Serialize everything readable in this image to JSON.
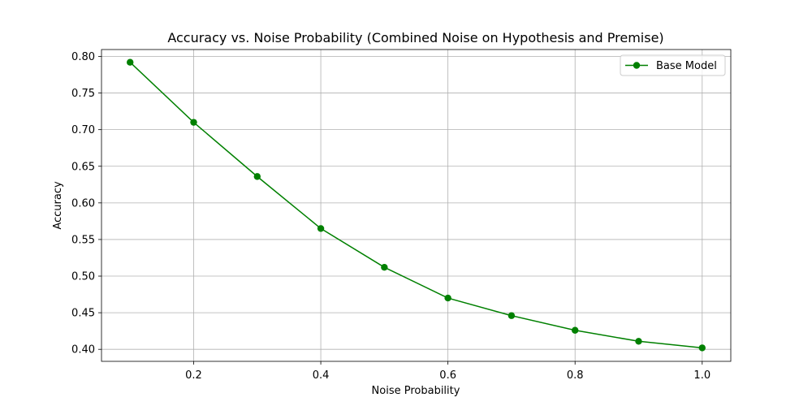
{
  "chart_data": {
    "type": "line",
    "title": "Accuracy vs. Noise Probability (Combined Noise on Hypothesis and Premise)",
    "xlabel": "Noise Probability",
    "ylabel": "Accuracy",
    "xlim": [
      0.055,
      1.045
    ],
    "ylim": [
      0.3836,
      0.8094
    ],
    "xticks": [
      0.2,
      0.4,
      0.6,
      0.8,
      1.0
    ],
    "xtick_labels": [
      "0.2",
      "0.4",
      "0.6",
      "0.8",
      "1.0"
    ],
    "yticks": [
      0.4,
      0.45,
      0.5,
      0.55,
      0.6,
      0.65,
      0.7,
      0.75,
      0.8
    ],
    "ytick_labels": [
      "0.40",
      "0.45",
      "0.50",
      "0.55",
      "0.60",
      "0.65",
      "0.70",
      "0.75",
      "0.80"
    ],
    "grid": true,
    "legend_position": "top-right",
    "series": [
      {
        "name": "Base Model",
        "color": "#008000",
        "marker": "circle",
        "x": [
          0.1,
          0.2,
          0.3,
          0.4,
          0.5,
          0.6,
          0.7,
          0.8,
          0.9,
          1.0
        ],
        "y": [
          0.792,
          0.71,
          0.636,
          0.565,
          0.512,
          0.47,
          0.446,
          0.426,
          0.411,
          0.402
        ]
      }
    ]
  }
}
